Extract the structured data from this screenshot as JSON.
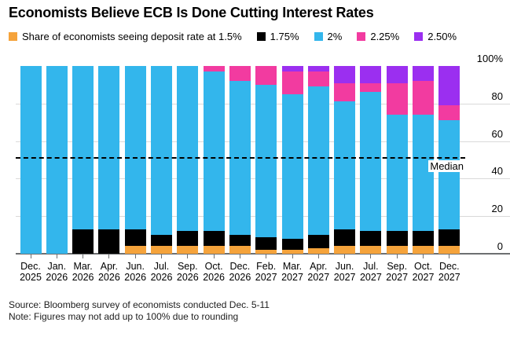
{
  "title": "Economists Believe ECB Is Done Cutting Interest Rates",
  "legend": {
    "items": [
      {
        "label": "Share of economists seeing deposit rate at 1.5%",
        "color": "#f5a33b"
      },
      {
        "label": "1.75%",
        "color": "#000000"
      },
      {
        "label": "2%",
        "color": "#33b6ec"
      },
      {
        "label": "2.25%",
        "color": "#f23ba0"
      },
      {
        "label": "2.50%",
        "color": "#9b2ff0"
      }
    ]
  },
  "chart_data": {
    "type": "bar",
    "stacked": true,
    "unit": "percent",
    "title": "Economists Believe ECB Is Done Cutting Interest Rates",
    "categories": [
      [
        "Dec.",
        "2025"
      ],
      [
        "Jan.",
        "2026"
      ],
      [
        "Mar.",
        "2026"
      ],
      [
        "Apr.",
        "2026"
      ],
      [
        "Jun.",
        "2026"
      ],
      [
        "Jul.",
        "2026"
      ],
      [
        "Sep.",
        "2026"
      ],
      [
        "Oct.",
        "2026"
      ],
      [
        "Dec.",
        "2026"
      ],
      [
        "Feb.",
        "2027"
      ],
      [
        "Mar.",
        "2027"
      ],
      [
        "Apr.",
        "2027"
      ],
      [
        "Jun.",
        "2027"
      ],
      [
        "Jul.",
        "2027"
      ],
      [
        "Sep.",
        "2027"
      ],
      [
        "Oct.",
        "2027"
      ],
      [
        "Dec.",
        "2027"
      ]
    ],
    "series": [
      {
        "name": "Share of economists seeing deposit rate at 1.5%",
        "color": "#f5a33b",
        "values": [
          0,
          0,
          0,
          0,
          4,
          4,
          4,
          4,
          4,
          2,
          2,
          3,
          4,
          4,
          4,
          4,
          4
        ]
      },
      {
        "name": "1.75%",
        "color": "#000000",
        "values": [
          0,
          0,
          13,
          13,
          9,
          6,
          8,
          8,
          6,
          7,
          6,
          7,
          9,
          8,
          8,
          8,
          9
        ]
      },
      {
        "name": "2%",
        "color": "#33b6ec",
        "values": [
          100,
          100,
          87,
          87,
          87,
          90,
          88,
          85,
          82,
          81,
          77,
          79,
          68,
          74,
          62,
          62,
          58
        ]
      },
      {
        "name": "2.25%",
        "color": "#f23ba0",
        "values": [
          0,
          0,
          0,
          0,
          0,
          0,
          0,
          3,
          8,
          10,
          12,
          8,
          10,
          5,
          17,
          18,
          8
        ]
      },
      {
        "name": "2.50%",
        "color": "#9b2ff0",
        "values": [
          0,
          0,
          0,
          0,
          0,
          0,
          0,
          0,
          0,
          0,
          3,
          3,
          9,
          9,
          9,
          8,
          21
        ]
      }
    ],
    "ylim": [
      0,
      100
    ],
    "yticks": [
      0,
      20,
      40,
      60,
      80,
      100
    ],
    "ytick_labels": [
      "0",
      "20",
      "40",
      "60",
      "80",
      "100%"
    ],
    "y_axis_side": "right",
    "grid": "horizontal",
    "legend_position": "top",
    "median_line": {
      "value": 51,
      "label": "Median",
      "style": "dashed"
    }
  },
  "footer": {
    "source": "Source: Bloomberg survey of economists conducted Dec. 5-11",
    "note": "Note: Figures may not add up to 100% due to rounding"
  }
}
